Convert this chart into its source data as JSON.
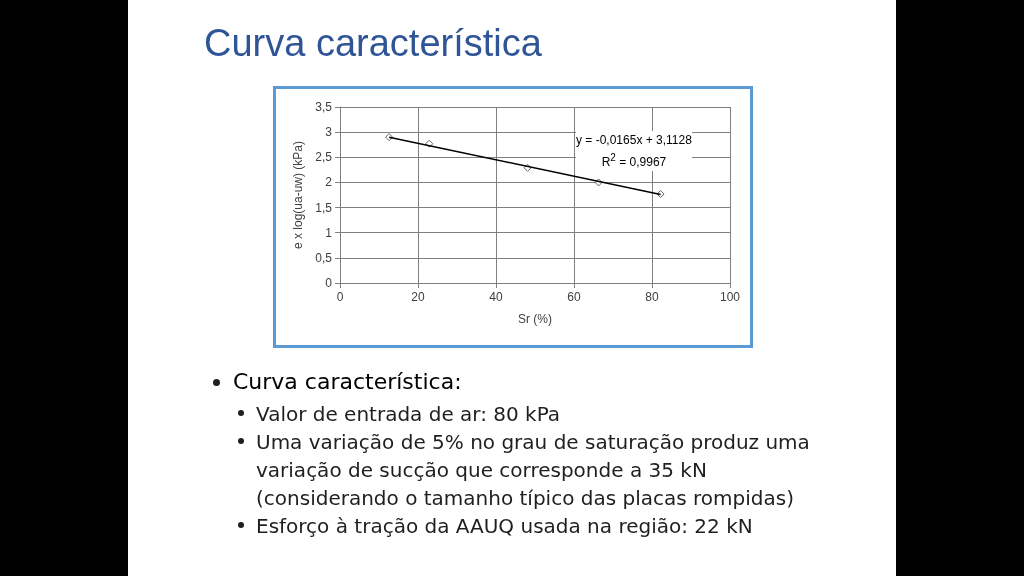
{
  "chart_data": {
    "type": "scatter",
    "title": "Curva característica",
    "xlabel": "Sr (%)",
    "ylabel": "e x log(ua-uw) (kPa)",
    "xlim": [
      0,
      100
    ],
    "xticks": [
      0,
      20,
      40,
      60,
      80,
      100
    ],
    "ylim": [
      0,
      3.5
    ],
    "yticks": [
      0,
      {
        "value": 0.5,
        "label": "0,5"
      },
      1,
      {
        "value": 1.5,
        "label": "1,5"
      },
      2,
      {
        "value": 2.5,
        "label": "2,5"
      },
      3,
      {
        "value": 3.5,
        "label": "3,5"
      }
    ],
    "grid": true,
    "marker": "diamond",
    "line_style": "solid",
    "series": [
      {
        "color": "#404040",
        "x": [
          12.6,
          22.9,
          48.1,
          66.3,
          82.2
        ],
        "values": [
          2.9,
          2.77,
          2.29,
          2.0,
          1.77
        ]
      },
      {
        "type": "line",
        "color": "#000000",
        "marker": "none",
        "x": [
          12.6,
          82.2
        ],
        "values": [
          2.9,
          1.76
        ]
      }
    ],
    "annotations": [
      "y = -0,0165x + 3,1128",
      "R$^{2}$ = 0,9967",
      "Curva característica:",
      "Valor de entrada de ar: 80 kPa",
      "Uma variação de 5% no grau de saturação produz uma variação de sucção que corresponde a 35 kN (considerando o tamanho típico das placas rompidas)",
      "Esforço à tração da AAUQ usada na região: 22 kN"
    ]
  }
}
